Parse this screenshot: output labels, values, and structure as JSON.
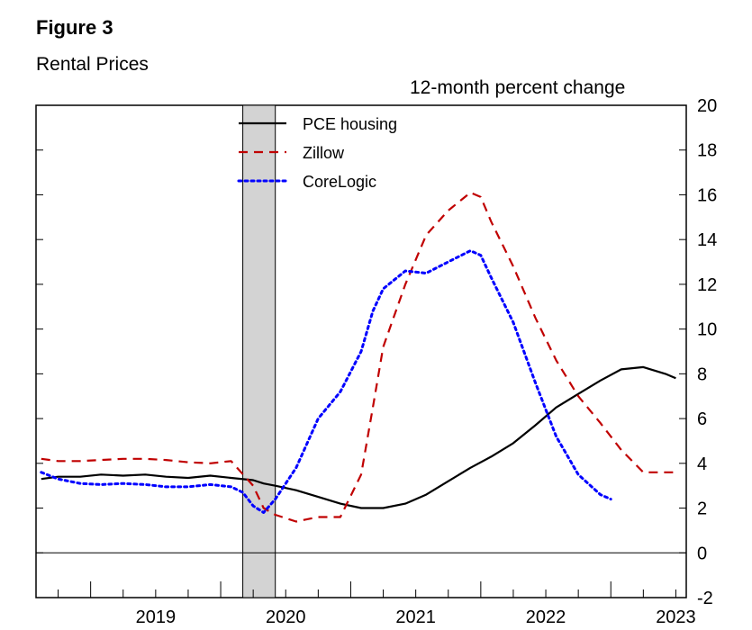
{
  "header": {
    "figure_label": "Figure 3",
    "subtitle": "Rental Prices",
    "unit": "12-month percent change"
  },
  "chart_data": {
    "type": "line",
    "title": "Rental Prices",
    "ylabel": "12-month percent change",
    "ylim": [
      -2,
      20
    ],
    "y_ticks": [
      -2,
      0,
      2,
      4,
      6,
      8,
      10,
      12,
      14,
      16,
      18,
      20
    ],
    "x_range": [
      2018.58,
      2023.58
    ],
    "x_tick_labels": [
      "2019",
      "2020",
      "2021",
      "2022",
      "2023"
    ],
    "y_axis_side": "right",
    "grid": false,
    "legend_position": "top-center",
    "recession_shading": {
      "start": 2020.17,
      "end": 2020.42,
      "color": "#d3d3d3"
    },
    "series": [
      {
        "name": "PCE housing",
        "color": "#000000",
        "style": "solid",
        "x": [
          2018.62,
          2018.75,
          2018.92,
          2019.08,
          2019.25,
          2019.42,
          2019.58,
          2019.75,
          2019.92,
          2020.08,
          2020.25,
          2020.33,
          2020.42,
          2020.58,
          2020.75,
          2020.92,
          2021.08,
          2021.25,
          2021.42,
          2021.58,
          2021.75,
          2021.92,
          2022.08,
          2022.25,
          2022.42,
          2022.58,
          2022.75,
          2022.92,
          2023.08,
          2023.25,
          2023.42,
          2023.5
        ],
        "y": [
          3.3,
          3.4,
          3.4,
          3.5,
          3.45,
          3.5,
          3.4,
          3.35,
          3.45,
          3.35,
          3.25,
          3.1,
          3.0,
          2.8,
          2.5,
          2.2,
          2.0,
          2.0,
          2.2,
          2.6,
          3.2,
          3.8,
          4.3,
          4.9,
          5.7,
          6.5,
          7.1,
          7.7,
          8.2,
          8.3,
          8.0,
          7.8
        ]
      },
      {
        "name": "Zillow",
        "color": "#c00000",
        "style": "dashed",
        "x": [
          2018.62,
          2018.75,
          2018.92,
          2019.08,
          2019.25,
          2019.42,
          2019.58,
          2019.75,
          2019.92,
          2020.08,
          2020.25,
          2020.33,
          2020.42,
          2020.58,
          2020.75,
          2020.92,
          2021.08,
          2021.17,
          2021.25,
          2021.42,
          2021.58,
          2021.75,
          2021.92,
          2022.0,
          2022.08,
          2022.25,
          2022.42,
          2022.58,
          2022.75,
          2022.92,
          2023.08,
          2023.25,
          2023.42,
          2023.5
        ],
        "y": [
          4.2,
          4.1,
          4.1,
          4.15,
          4.2,
          4.2,
          4.15,
          4.05,
          4.0,
          4.1,
          3.0,
          2.0,
          1.7,
          1.4,
          1.6,
          1.6,
          3.5,
          6.5,
          9.2,
          12.0,
          14.2,
          15.3,
          16.1,
          15.9,
          14.8,
          12.8,
          10.5,
          8.6,
          7.0,
          5.8,
          4.6,
          3.6,
          3.6,
          3.6
        ]
      },
      {
        "name": "CoreLogic",
        "color": "#0000ff",
        "style": "dotted",
        "x": [
          2018.62,
          2018.75,
          2018.92,
          2019.08,
          2019.25,
          2019.42,
          2019.58,
          2019.75,
          2019.92,
          2020.08,
          2020.17,
          2020.25,
          2020.33,
          2020.42,
          2020.58,
          2020.75,
          2020.92,
          2021.08,
          2021.17,
          2021.25,
          2021.42,
          2021.58,
          2021.75,
          2021.92,
          2022.0,
          2022.08,
          2022.25,
          2022.42,
          2022.58,
          2022.75,
          2022.92,
          2023.0
        ],
        "y": [
          3.6,
          3.3,
          3.1,
          3.05,
          3.1,
          3.05,
          2.95,
          2.95,
          3.05,
          2.95,
          2.7,
          2.1,
          1.8,
          2.4,
          3.8,
          6.0,
          7.2,
          9.0,
          10.8,
          11.8,
          12.6,
          12.5,
          13.0,
          13.5,
          13.3,
          12.3,
          10.3,
          7.6,
          5.2,
          3.5,
          2.6,
          2.4
        ]
      }
    ]
  }
}
